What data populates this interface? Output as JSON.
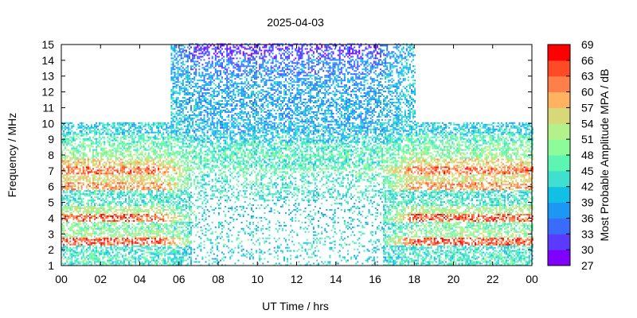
{
  "chart_data": {
    "type": "heatmap",
    "title": "2025-04-03",
    "xlabel": "UT Time / hrs",
    "ylabel": "Frequency / MHz",
    "colorbar_label": "Most Probable Amplitude MPA / dB",
    "xlim": [
      0,
      24
    ],
    "ylim": [
      1,
      15
    ],
    "x_ticks": [
      "00",
      "02",
      "04",
      "06",
      "08",
      "10",
      "12",
      "14",
      "16",
      "18",
      "20",
      "22",
      "00"
    ],
    "y_ticks": [
      "1",
      "2",
      "3",
      "4",
      "5",
      "6",
      "7",
      "8",
      "9",
      "10",
      "11",
      "12",
      "13",
      "14",
      "15"
    ],
    "colorbar_ticks": [
      "27",
      "30",
      "33",
      "36",
      "39",
      "42",
      "45",
      "48",
      "51",
      "54",
      "57",
      "60",
      "63",
      "66",
      "69"
    ],
    "colorbar_range": [
      27,
      69
    ],
    "colorbar_colors": [
      "#7f00ff",
      "#5a3bff",
      "#3a6cfb",
      "#1c98f4",
      "#12c0e6",
      "#3fe0d0",
      "#5cf6b2",
      "#8cfc9b",
      "#b3f18b",
      "#d9d878",
      "#ffb260",
      "#ff7f4a",
      "#ff4a26",
      "#ff0000"
    ],
    "grid": false,
    "dense_band_mhz": [
      1,
      10
    ],
    "day_extension": {
      "start_hr": 5.5,
      "end_hr": 18,
      "max_mhz": 15
    },
    "band_profile": [
      {
        "mhz": 1.5,
        "night_dB": 45,
        "day_dB": 42
      },
      {
        "mhz": 2.0,
        "night_dB": 44,
        "day_dB": 42
      },
      {
        "mhz": 2.5,
        "night_dB": 64,
        "day_dB": 44
      },
      {
        "mhz": 3.0,
        "night_dB": 51,
        "day_dB": 43
      },
      {
        "mhz": 3.5,
        "night_dB": 48,
        "day_dB": 42
      },
      {
        "mhz": 4.0,
        "night_dB": 63,
        "day_dB": 42
      },
      {
        "mhz": 4.5,
        "night_dB": 52,
        "day_dB": 42
      },
      {
        "mhz": 5.0,
        "night_dB": 45,
        "day_dB": 43
      },
      {
        "mhz": 5.5,
        "night_dB": 44,
        "day_dB": 44
      },
      {
        "mhz": 6.0,
        "night_dB": 60,
        "day_dB": 45
      },
      {
        "mhz": 6.5,
        "night_dB": 55,
        "day_dB": 45
      },
      {
        "mhz": 7.0,
        "night_dB": 62,
        "day_dB": 47
      },
      {
        "mhz": 7.5,
        "night_dB": 56,
        "day_dB": 45
      },
      {
        "mhz": 8.0,
        "night_dB": 50,
        "day_dB": 46
      },
      {
        "mhz": 8.5,
        "night_dB": 48,
        "day_dB": 45
      },
      {
        "mhz": 9.0,
        "night_dB": 46,
        "day_dB": 42
      },
      {
        "mhz": 9.5,
        "night_dB": 42,
        "day_dB": 40
      },
      {
        "mhz": 10.5,
        "night_dB": null,
        "day_dB": 39
      },
      {
        "mhz": 11.5,
        "night_dB": null,
        "day_dB": 39
      },
      {
        "mhz": 12.5,
        "night_dB": null,
        "day_dB": 38
      },
      {
        "mhz": 13.5,
        "night_dB": null,
        "day_dB": 36
      },
      {
        "mhz": 14.5,
        "night_dB": null,
        "day_dB": 32
      }
    ]
  }
}
